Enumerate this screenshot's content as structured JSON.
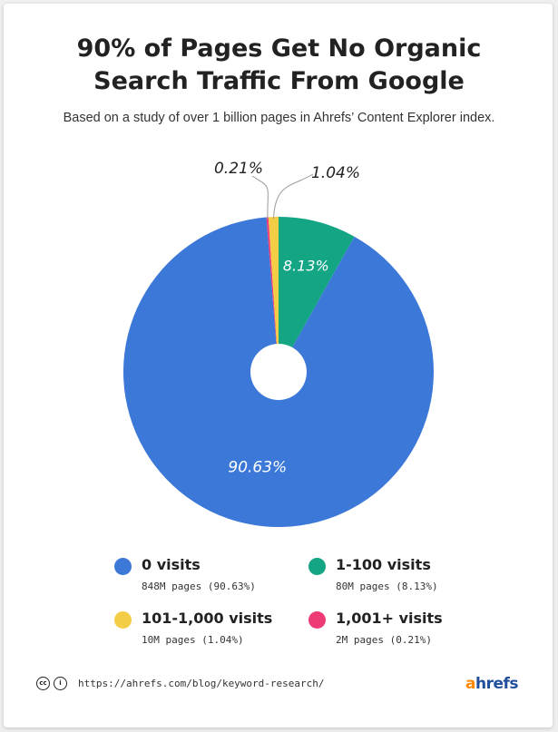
{
  "header": {
    "title_line1": "90% of Pages Get No Organic",
    "title_line2": "Search Traffic From Google",
    "subtitle": "Based on a study of over 1 billion pages in Ahrefs’ Content Explorer index."
  },
  "chart_data": {
    "type": "pie",
    "title": "90% of Pages Get No Organic Search Traffic From Google",
    "subtitle": "Based on a study of over 1 billion pages in Ahrefs’ Content Explorer index.",
    "donut": true,
    "slices": [
      {
        "name": "0 visits",
        "value": 90.63,
        "label": "90.63%",
        "pages": "848M pages (90.63%)",
        "color": "#3b78d8"
      },
      {
        "name": "1-100 visits",
        "value": 8.13,
        "label": "8.13%",
        "pages": "80M pages (8.13%)",
        "color": "#13a584"
      },
      {
        "name": "101-1,000 visits",
        "value": 1.04,
        "label": "1.04%",
        "pages": "10M pages (1.04%)",
        "color": "#f4cd47"
      },
      {
        "name": "1,001+ visits",
        "value": 0.21,
        "label": "0.21%",
        "pages": "2M pages (0.21%)",
        "color": "#ee3b76"
      }
    ],
    "slice_order": "clockwise from top: 1-100 visits, 0 visits, 1,001+ visits, 101-1,000 visits",
    "legend_placement": "bottom"
  },
  "legend": {
    "items": [
      {
        "name": "0 visits",
        "detail": "848M pages (90.63%)",
        "color": "#3b78d8"
      },
      {
        "name": "1-100 visits",
        "detail": "80M pages (8.13%)",
        "color": "#13a584"
      },
      {
        "name": "101-1,000 visits",
        "detail": "10M pages (1.04%)",
        "color": "#f4cd47"
      },
      {
        "name": "1,001+ visits",
        "detail": "2M pages (0.21%)",
        "color": "#ee3b76"
      }
    ]
  },
  "footer": {
    "license_icons": [
      "cc-icon",
      "attribution-icon"
    ],
    "url": "https://ahrefs.com/blog/keyword-research/",
    "logo_first": "a",
    "logo_rest": "hrefs"
  },
  "colors": {
    "blue": "#3b78d8",
    "green": "#13a584",
    "yellow": "#f4cd47",
    "pink": "#ee3b76",
    "logo_orange": "#ff8800",
    "logo_blue": "#1f4f9c"
  }
}
